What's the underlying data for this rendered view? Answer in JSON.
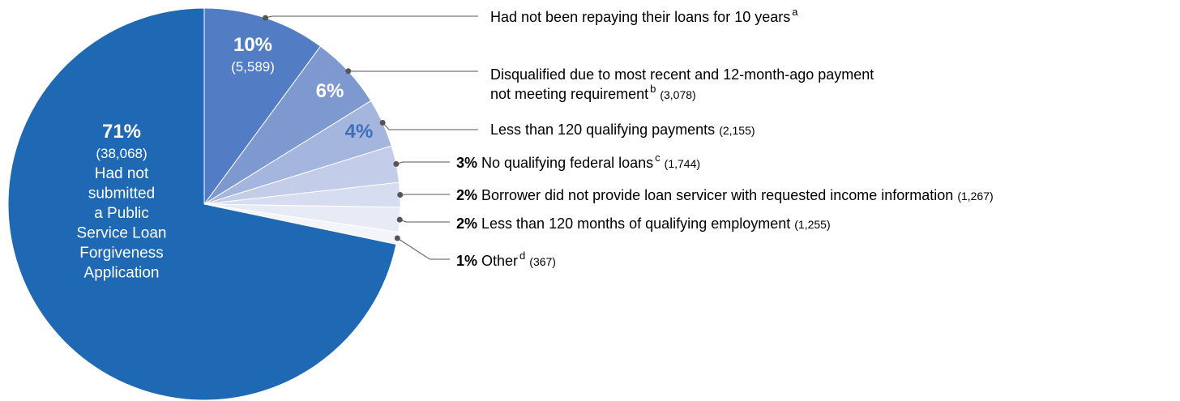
{
  "chart_data": {
    "type": "pie",
    "values": [
      10,
      6,
      4,
      3,
      2,
      2,
      1,
      71
    ],
    "value_labels": [
      "10%",
      "6%",
      "4%",
      "3%",
      "2%",
      "2%",
      "1%",
      "71%"
    ],
    "counts": [
      5589,
      3078,
      2155,
      1744,
      1267,
      1255,
      367,
      38068
    ],
    "count_labels": [
      "(5,589)",
      "(3,078)",
      "(2,155)",
      "(1,744)",
      "(1,267)",
      "(1,255)",
      "(367)",
      "(38,068)"
    ],
    "labels": [
      [
        "Had not been repaying their loans for 10 years"
      ],
      [
        "Disqualified due to most recent and 12-month-ago payment",
        "not meeting requirement"
      ],
      [
        "Less than 120 qualifying payments"
      ],
      [
        "No qualifying federal loans"
      ],
      [
        "Borrower did not provide loan servicer with requested income information"
      ],
      [
        "Less than 120 months of qualifying employment"
      ],
      [
        "Other"
      ],
      [
        "Had not",
        "submitted",
        "a Public",
        "Service Loan",
        "Forgiveness",
        "Application"
      ]
    ],
    "footnotes": [
      "a",
      "b",
      null,
      "c",
      null,
      null,
      "d",
      null
    ],
    "colors": [
      "#527cc4",
      "#7e98d0",
      "#a4b5de",
      "#c3cce9",
      "#d7ddf0",
      "#e7ebf6",
      "#f3f5fb",
      "#1f69b4"
    ]
  }
}
